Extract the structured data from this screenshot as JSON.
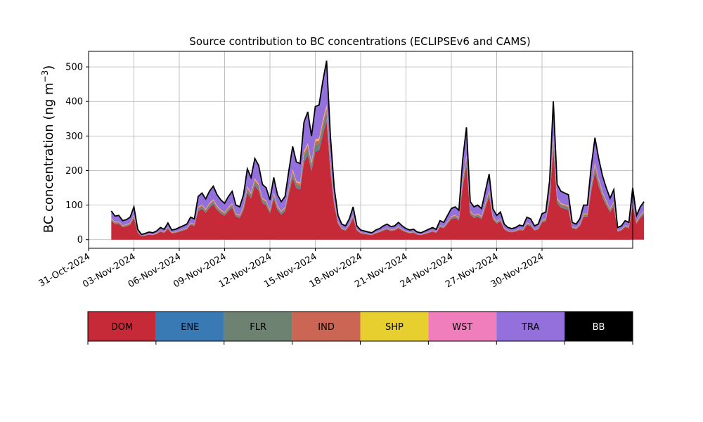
{
  "chart_data": {
    "type": "area",
    "title": "Source contribution to BC concentrations (ECLIPSEv6 and CAMS)",
    "xlabel": "",
    "ylabel": "BC concentration (ng m",
    "ylabel_unit_exponent": "−3",
    "ylabel_suffix": ")",
    "x_axis": {
      "type": "date",
      "range": [
        "2024-10-31",
        "2024-12-06"
      ],
      "tick_labels": [
        "31-Oct-2024",
        "03-Nov-2024",
        "06-Nov-2024",
        "09-Nov-2024",
        "12-Nov-2024",
        "15-Nov-2024",
        "18-Nov-2024",
        "21-Nov-2024",
        "24-Nov-2024",
        "27-Nov-2024",
        "30-Nov-2024"
      ],
      "tick_dates": [
        "2024-10-31",
        "2024-11-03",
        "2024-11-06",
        "2024-11-09",
        "2024-11-12",
        "2024-11-15",
        "2024-11-18",
        "2024-11-21",
        "2024-11-24",
        "2024-11-27",
        "2024-11-30"
      ]
    },
    "y_axis": {
      "range": [
        -25,
        545
      ],
      "ticks": [
        0,
        100,
        200,
        300,
        400,
        500
      ]
    },
    "grid": true,
    "stacked": true,
    "series_order_bottom_to_top": [
      "DOM",
      "ENE",
      "FLR",
      "IND",
      "SHP",
      "WST",
      "TRA"
    ],
    "colors": {
      "DOM": "#c62a38",
      "ENE": "#3a7ab4",
      "FLR": "#6e8271",
      "IND": "#cb6655",
      "SHP": "#e6cf2e",
      "WST": "#f07dbc",
      "TRA": "#9370db",
      "BB": "#000000"
    },
    "label_text_colors": {
      "DOM": "#000000",
      "ENE": "#000000",
      "FLR": "#000000",
      "IND": "#000000",
      "SHP": "#000000",
      "WST": "#000000",
      "TRA": "#000000",
      "BB": "#ffffff"
    },
    "fractions": {
      "DOM": 0.66,
      "ENE": 0.012,
      "FLR": 0.04,
      "IND": 0.025,
      "SHP": 0.01,
      "WST": 0.008,
      "TRA": 0.245
    },
    "total_series_name": "BB",
    "total": [
      [
        "2024-11-01T12:00",
        83
      ],
      [
        "2024-11-01T18:00",
        68
      ],
      [
        "2024-11-02T00:00",
        70
      ],
      [
        "2024-11-02T06:00",
        55
      ],
      [
        "2024-11-02T12:00",
        58
      ],
      [
        "2024-11-02T18:00",
        65
      ],
      [
        "2024-11-03T00:00",
        95
      ],
      [
        "2024-11-03T06:00",
        30
      ],
      [
        "2024-11-03T12:00",
        15
      ],
      [
        "2024-11-03T18:00",
        18
      ],
      [
        "2024-11-04T00:00",
        22
      ],
      [
        "2024-11-04T06:00",
        20
      ],
      [
        "2024-11-04T12:00",
        25
      ],
      [
        "2024-11-04T18:00",
        35
      ],
      [
        "2024-11-05T00:00",
        30
      ],
      [
        "2024-11-05T06:00",
        48
      ],
      [
        "2024-11-05T12:00",
        28
      ],
      [
        "2024-11-05T18:00",
        30
      ],
      [
        "2024-11-06T00:00",
        35
      ],
      [
        "2024-11-06T06:00",
        40
      ],
      [
        "2024-11-06T12:00",
        45
      ],
      [
        "2024-11-06T18:00",
        65
      ],
      [
        "2024-11-07T00:00",
        60
      ],
      [
        "2024-11-07T06:00",
        125
      ],
      [
        "2024-11-07T12:00",
        135
      ],
      [
        "2024-11-07T18:00",
        118
      ],
      [
        "2024-11-08T00:00",
        140
      ],
      [
        "2024-11-08T06:00",
        155
      ],
      [
        "2024-11-08T12:00",
        130
      ],
      [
        "2024-11-08T18:00",
        115
      ],
      [
        "2024-11-09T00:00",
        105
      ],
      [
        "2024-11-09T06:00",
        125
      ],
      [
        "2024-11-09T12:00",
        140
      ],
      [
        "2024-11-09T18:00",
        100
      ],
      [
        "2024-11-10T00:00",
        95
      ],
      [
        "2024-11-10T06:00",
        130
      ],
      [
        "2024-11-10T12:00",
        205
      ],
      [
        "2024-11-10T18:00",
        180
      ],
      [
        "2024-11-11T00:00",
        235
      ],
      [
        "2024-11-11T06:00",
        215
      ],
      [
        "2024-11-11T12:00",
        160
      ],
      [
        "2024-11-11T18:00",
        150
      ],
      [
        "2024-11-12T00:00",
        115
      ],
      [
        "2024-11-12T06:00",
        180
      ],
      [
        "2024-11-12T12:00",
        130
      ],
      [
        "2024-11-12T18:00",
        110
      ],
      [
        "2024-11-13T00:00",
        125
      ],
      [
        "2024-11-13T06:00",
        200
      ],
      [
        "2024-11-13T12:00",
        270
      ],
      [
        "2024-11-13T18:00",
        225
      ],
      [
        "2024-11-14T00:00",
        220
      ],
      [
        "2024-11-14T06:00",
        340
      ],
      [
        "2024-11-14T12:00",
        370
      ],
      [
        "2024-11-14T18:00",
        300
      ],
      [
        "2024-11-15T00:00",
        385
      ],
      [
        "2024-11-15T06:00",
        390
      ],
      [
        "2024-11-15T12:00",
        460
      ],
      [
        "2024-11-15T18:00",
        518
      ],
      [
        "2024-11-16T00:00",
        300
      ],
      [
        "2024-11-16T06:00",
        150
      ],
      [
        "2024-11-16T12:00",
        70
      ],
      [
        "2024-11-16T18:00",
        45
      ],
      [
        "2024-11-17T00:00",
        40
      ],
      [
        "2024-11-17T06:00",
        60
      ],
      [
        "2024-11-17T12:00",
        95
      ],
      [
        "2024-11-17T18:00",
        40
      ],
      [
        "2024-11-18T00:00",
        28
      ],
      [
        "2024-11-18T06:00",
        25
      ],
      [
        "2024-11-18T12:00",
        22
      ],
      [
        "2024-11-18T18:00",
        20
      ],
      [
        "2024-11-19T00:00",
        28
      ],
      [
        "2024-11-19T06:00",
        32
      ],
      [
        "2024-11-19T12:00",
        40
      ],
      [
        "2024-11-19T18:00",
        45
      ],
      [
        "2024-11-20T00:00",
        38
      ],
      [
        "2024-11-20T06:00",
        40
      ],
      [
        "2024-11-20T12:00",
        50
      ],
      [
        "2024-11-20T18:00",
        40
      ],
      [
        "2024-11-21T00:00",
        32
      ],
      [
        "2024-11-21T06:00",
        28
      ],
      [
        "2024-11-21T12:00",
        30
      ],
      [
        "2024-11-21T18:00",
        22
      ],
      [
        "2024-11-22T00:00",
        20
      ],
      [
        "2024-11-22T06:00",
        25
      ],
      [
        "2024-11-22T12:00",
        30
      ],
      [
        "2024-11-22T18:00",
        35
      ],
      [
        "2024-11-23T00:00",
        30
      ],
      [
        "2024-11-23T06:00",
        55
      ],
      [
        "2024-11-23T12:00",
        50
      ],
      [
        "2024-11-23T18:00",
        70
      ],
      [
        "2024-11-24T00:00",
        90
      ],
      [
        "2024-11-24T06:00",
        95
      ],
      [
        "2024-11-24T12:00",
        85
      ],
      [
        "2024-11-24T18:00",
        230
      ],
      [
        "2024-11-25T00:00",
        325
      ],
      [
        "2024-11-25T06:00",
        110
      ],
      [
        "2024-11-25T12:00",
        95
      ],
      [
        "2024-11-25T18:00",
        100
      ],
      [
        "2024-11-26T00:00",
        90
      ],
      [
        "2024-11-26T06:00",
        140
      ],
      [
        "2024-11-26T12:00",
        190
      ],
      [
        "2024-11-26T18:00",
        90
      ],
      [
        "2024-11-27T00:00",
        70
      ],
      [
        "2024-11-27T06:00",
        80
      ],
      [
        "2024-11-27T12:00",
        45
      ],
      [
        "2024-11-27T18:00",
        35
      ],
      [
        "2024-11-28T00:00",
        32
      ],
      [
        "2024-11-28T06:00",
        35
      ],
      [
        "2024-11-28T12:00",
        42
      ],
      [
        "2024-11-28T18:00",
        40
      ],
      [
        "2024-11-29T00:00",
        65
      ],
      [
        "2024-11-29T06:00",
        60
      ],
      [
        "2024-11-29T12:00",
        40
      ],
      [
        "2024-11-29T18:00",
        45
      ],
      [
        "2024-11-30T00:00",
        75
      ],
      [
        "2024-11-30T06:00",
        80
      ],
      [
        "2024-11-30T12:00",
        170
      ],
      [
        "2024-11-30T18:00",
        400
      ],
      [
        "2024-12-01T00:00",
        160
      ],
      [
        "2024-12-01T06:00",
        140
      ],
      [
        "2024-12-01T12:00",
        135
      ],
      [
        "2024-12-01T18:00",
        130
      ],
      [
        "2024-12-02T00:00",
        50
      ],
      [
        "2024-12-02T06:00",
        45
      ],
      [
        "2024-12-02T12:00",
        60
      ],
      [
        "2024-12-02T18:00",
        100
      ],
      [
        "2024-12-03T00:00",
        100
      ],
      [
        "2024-12-03T06:00",
        210
      ],
      [
        "2024-12-03T12:00",
        295
      ],
      [
        "2024-12-03T18:00",
        235
      ],
      [
        "2024-12-04T00:00",
        185
      ],
      [
        "2024-12-04T06:00",
        150
      ],
      [
        "2024-12-04T12:00",
        120
      ],
      [
        "2024-12-04T18:00",
        145
      ],
      [
        "2024-12-05T00:00",
        35
      ],
      [
        "2024-12-05T06:00",
        40
      ],
      [
        "2024-12-05T12:00",
        55
      ],
      [
        "2024-12-05T18:00",
        50
      ],
      [
        "2024-12-06T00:00",
        150
      ],
      [
        "2024-12-06T06:00",
        70
      ],
      [
        "2024-12-06T12:00",
        95
      ],
      [
        "2024-12-06T18:00",
        110
      ]
    ]
  },
  "legend": {
    "items": [
      {
        "key": "DOM",
        "label": "DOM"
      },
      {
        "key": "ENE",
        "label": "ENE"
      },
      {
        "key": "FLR",
        "label": "FLR"
      },
      {
        "key": "IND",
        "label": "IND"
      },
      {
        "key": "SHP",
        "label": "SHP"
      },
      {
        "key": "WST",
        "label": "WST"
      },
      {
        "key": "TRA",
        "label": "TRA"
      },
      {
        "key": "BB",
        "label": "BB"
      }
    ]
  }
}
